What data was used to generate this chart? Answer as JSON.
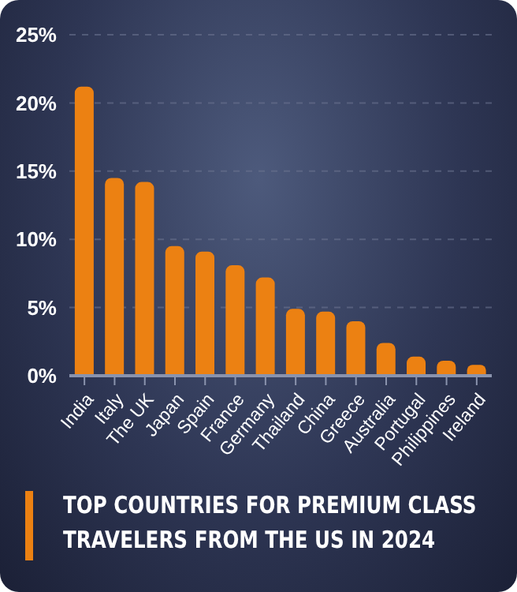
{
  "chart_data": {
    "type": "bar",
    "title": "TOP COUNTRIES FOR PREMIUM CLASS TRAVELERS FROM THE US IN 2024",
    "categories": [
      "India",
      "Italy",
      "The UK",
      "Japan",
      "Spain",
      "France",
      "Germany",
      "Thailand",
      "China",
      "Greece",
      "Australia",
      "Portugal",
      "Philippines",
      "Ireland"
    ],
    "values": [
      21.2,
      14.5,
      14.2,
      9.5,
      9.1,
      8.1,
      7.2,
      4.9,
      4.7,
      4.0,
      2.4,
      1.4,
      1.1,
      0.8
    ],
    "color": "#ec8112",
    "ylim": [
      0,
      25
    ],
    "yticks": [
      {
        "value": 0,
        "label": "0%"
      },
      {
        "value": 5,
        "label": "5%"
      },
      {
        "value": 10,
        "label": "10%"
      },
      {
        "value": 15,
        "label": "15%"
      },
      {
        "value": 20,
        "label": "20%"
      },
      {
        "value": 25,
        "label": "25%"
      }
    ],
    "grid": "y"
  }
}
